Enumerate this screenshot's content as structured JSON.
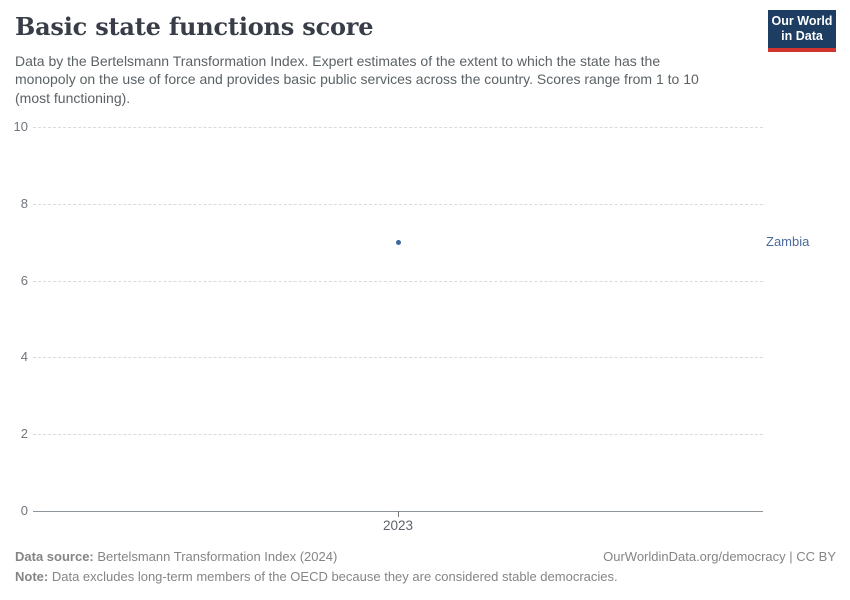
{
  "header": {
    "title": "Basic state functions score",
    "subtitle": "Data by the Bertelsmann Transformation Index. Expert estimates of the extent to which the state has the monopoly on the use of force and provides basic public services across the country. Scores range from 1 to 10 (most functioning)."
  },
  "logo": {
    "line1": "Our World",
    "line2": "in Data"
  },
  "chart_data": {
    "type": "scatter",
    "title": "Basic state functions score",
    "x": [
      2023
    ],
    "xtick_labels": [
      "2023"
    ],
    "series": [
      {
        "name": "Zambia",
        "values": [
          7
        ],
        "color": "#3d6a9d",
        "label_color": "#4c6a9c"
      }
    ],
    "xlabel": "",
    "ylabel": "",
    "ylim": [
      0,
      10
    ],
    "yticks": [
      0,
      2,
      4,
      6,
      8,
      10
    ],
    "grid": true,
    "gridline_style": "dashed",
    "legend_position": "right-of-point"
  },
  "colors": {
    "grid": "#d8dbde",
    "axis_line": "#8f969b",
    "tick_label": "#70767c",
    "title": "#383d48",
    "subtitle": "#5b6266",
    "footer": "#858585",
    "logo_bg": "#1d3d63",
    "logo_stripe": "#d0342c",
    "point": "#3d6a9d",
    "entity_label": "#4c6a9c"
  },
  "footer": {
    "source_label": "Data source:",
    "source_text": "Bertelsmann Transformation Index (2024)",
    "rights": "OurWorldinData.org/democracy | CC BY",
    "note_label": "Note:",
    "note_text": "Data excludes long-term members of the OECD because they are considered stable democracies."
  }
}
